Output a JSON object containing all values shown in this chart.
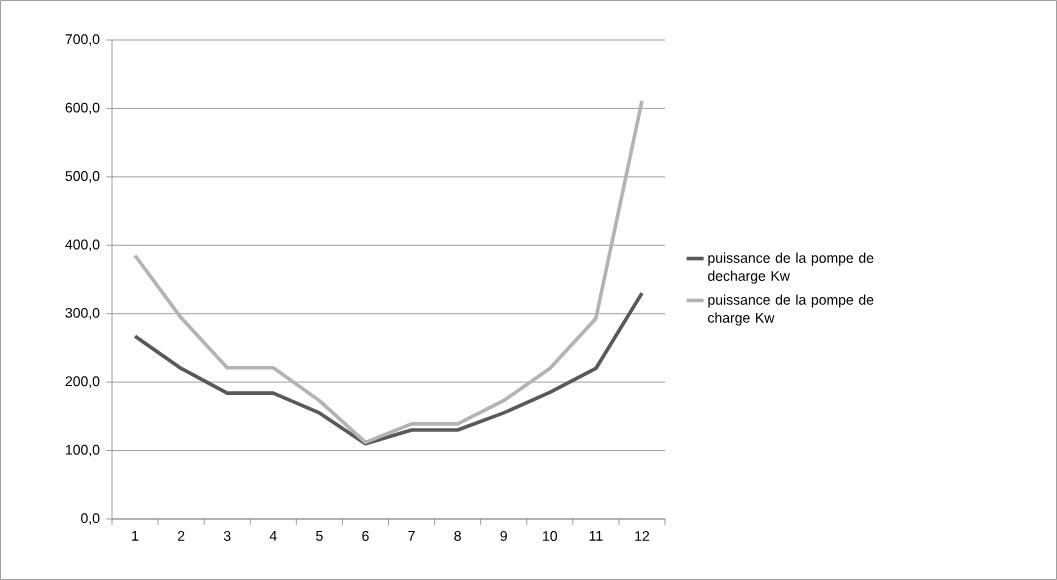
{
  "chart_data": {
    "type": "line",
    "categories": [
      "1",
      "2",
      "3",
      "4",
      "5",
      "6",
      "7",
      "8",
      "9",
      "10",
      "11",
      "12"
    ],
    "series": [
      {
        "name": "puissance de la pompe de decharge   Kw",
        "color": "#595959",
        "values": [
          267,
          220,
          184,
          184,
          155,
          110,
          130,
          130,
          155,
          185,
          220,
          330
        ]
      },
      {
        "name": "puissance de la pompe de charge  Kw",
        "color": "#b3b3b3",
        "values": [
          385,
          294,
          221,
          221,
          173,
          112,
          139,
          139,
          173,
          220,
          293,
          611
        ]
      }
    ],
    "ylim": [
      0,
      700
    ],
    "yticks": [
      {
        "value": 0,
        "label": "0,0"
      },
      {
        "value": 100,
        "label": "100,0"
      },
      {
        "value": 200,
        "label": "200,0"
      },
      {
        "value": 300,
        "label": "300,0"
      },
      {
        "value": 400,
        "label": "400,0"
      },
      {
        "value": 500,
        "label": "500,0"
      },
      {
        "value": 600,
        "label": "600,0"
      },
      {
        "value": 700,
        "label": "700,0"
      }
    ],
    "grid": "y",
    "legend": "right",
    "marker": "none",
    "line_style": "solid"
  }
}
